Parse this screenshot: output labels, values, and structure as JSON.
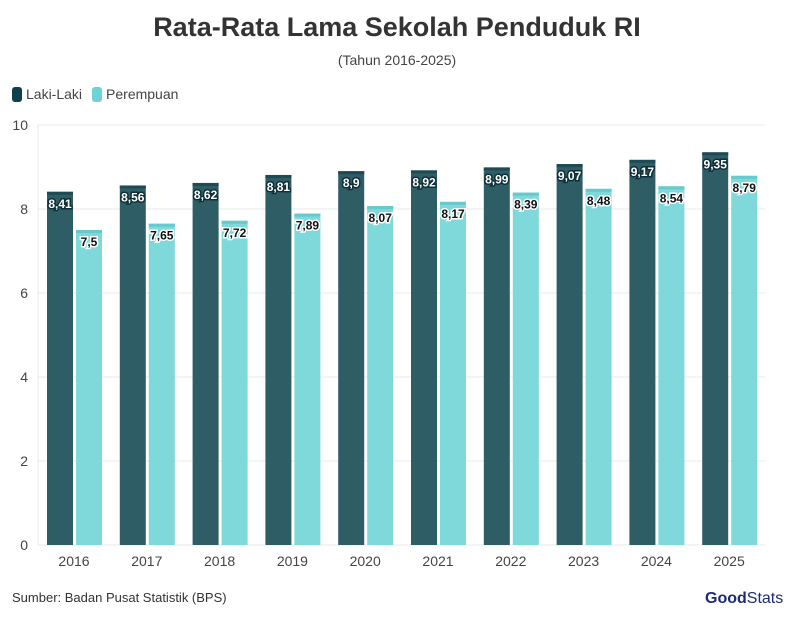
{
  "chart_data": {
    "type": "bar",
    "title": "Rata-Rata Lama Sekolah Penduduk RI",
    "subtitle": "(Tahun 2016-2025)",
    "categories": [
      "2016",
      "2017",
      "2018",
      "2019",
      "2020",
      "2021",
      "2022",
      "2023",
      "2024",
      "2025"
    ],
    "series": [
      {
        "name": "Laki-Laki",
        "color": "#2f5d66",
        "values": [
          8.41,
          8.56,
          8.62,
          8.81,
          8.9,
          8.92,
          8.99,
          9.07,
          9.17,
          9.35
        ],
        "labels": [
          "8,41",
          "8,56",
          "8,62",
          "8,81",
          "8,9",
          "8,92",
          "8,99",
          "9,07",
          "9,17",
          "9,35"
        ]
      },
      {
        "name": "Perempuan",
        "color": "#7fd8da",
        "values": [
          7.5,
          7.65,
          7.72,
          7.89,
          8.07,
          8.17,
          8.39,
          8.48,
          8.54,
          8.79
        ],
        "labels": [
          "7,5",
          "7,65",
          "7,72",
          "7,89",
          "8,07",
          "8,17",
          "8,39",
          "8,48",
          "8,54",
          "8,79"
        ]
      }
    ],
    "ylim": [
      0,
      10
    ],
    "yticks": [
      "0",
      "2",
      "4",
      "6",
      "8",
      "10"
    ],
    "grid": true,
    "legend": "top-left"
  },
  "source": "Sumber: Badan Pusat Statistik (BPS)",
  "logo": {
    "bold": "Good",
    "light": "Stats"
  }
}
